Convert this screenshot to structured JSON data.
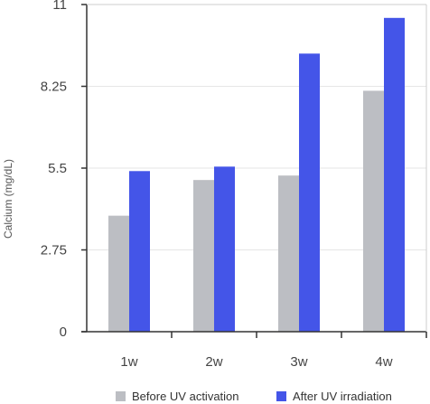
{
  "chart_data": {
    "type": "bar",
    "title": "",
    "xlabel": "",
    "ylabel": "Calcium (mg/dL)",
    "ylim": [
      0,
      11
    ],
    "yticks": [
      0,
      2.75,
      5.5,
      8.25,
      11
    ],
    "ytick_labels": [
      "0",
      "2.75",
      "5.5",
      "8.25",
      "11"
    ],
    "categories": [
      "1w",
      "2w",
      "3w",
      "4w"
    ],
    "series": [
      {
        "name": "Before UV activation",
        "color": "#bcbec3",
        "values": [
          3.9,
          5.1,
          5.25,
          8.1
        ]
      },
      {
        "name": "After UV irradiation",
        "color": "#4455e8",
        "values": [
          5.4,
          5.55,
          9.35,
          10.55
        ]
      }
    ],
    "grid": "horizontal",
    "legend_position": "bottom"
  }
}
